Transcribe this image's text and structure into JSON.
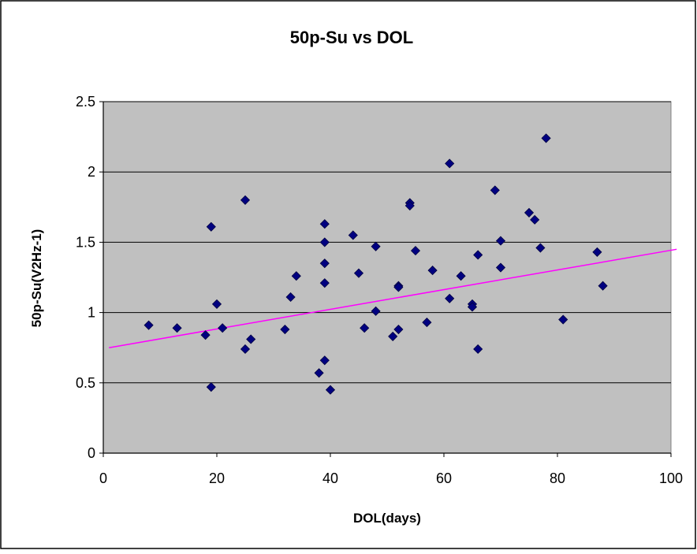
{
  "chart_data": {
    "type": "scatter",
    "title": "50p-Su vs DOL",
    "xlabel": "DOL(days)",
    "ylabel": "50p-Su(V2Hz-1)",
    "xlim": [
      0,
      100
    ],
    "ylim": [
      0,
      2.5
    ],
    "x_ticks": [
      "0",
      "20",
      "40",
      "60",
      "80",
      "100"
    ],
    "y_ticks": [
      "0",
      "0.5",
      "1",
      "1.5",
      "2",
      "2.5"
    ],
    "grid": "horizontal",
    "legend": "none",
    "series": [
      {
        "marker": "diamond",
        "points": [
          {
            "x": 8,
            "y": 0.91
          },
          {
            "x": 13,
            "y": 0.89
          },
          {
            "x": 18,
            "y": 0.84
          },
          {
            "x": 19,
            "y": 1.61
          },
          {
            "x": 19,
            "y": 0.47
          },
          {
            "x": 20,
            "y": 1.06
          },
          {
            "x": 21,
            "y": 0.89
          },
          {
            "x": 25,
            "y": 1.8
          },
          {
            "x": 25,
            "y": 0.74
          },
          {
            "x": 26,
            "y": 0.81
          },
          {
            "x": 32,
            "y": 0.88
          },
          {
            "x": 33,
            "y": 1.11
          },
          {
            "x": 34,
            "y": 1.26
          },
          {
            "x": 38,
            "y": 0.57
          },
          {
            "x": 39,
            "y": 1.63
          },
          {
            "x": 39,
            "y": 1.5
          },
          {
            "x": 39,
            "y": 1.35
          },
          {
            "x": 39,
            "y": 1.21
          },
          {
            "x": 39,
            "y": 0.66
          },
          {
            "x": 40,
            "y": 0.45
          },
          {
            "x": 44,
            "y": 1.55
          },
          {
            "x": 45,
            "y": 1.28
          },
          {
            "x": 46,
            "y": 0.89
          },
          {
            "x": 48,
            "y": 1.47
          },
          {
            "x": 48,
            "y": 1.01
          },
          {
            "x": 51,
            "y": 0.83
          },
          {
            "x": 52,
            "y": 1.19
          },
          {
            "x": 52,
            "y": 1.18
          },
          {
            "x": 52,
            "y": 0.88
          },
          {
            "x": 54,
            "y": 1.78
          },
          {
            "x": 54,
            "y": 1.76
          },
          {
            "x": 55,
            "y": 1.44
          },
          {
            "x": 57,
            "y": 0.93
          },
          {
            "x": 58,
            "y": 1.3
          },
          {
            "x": 61,
            "y": 2.06
          },
          {
            "x": 61,
            "y": 1.1
          },
          {
            "x": 63,
            "y": 1.26
          },
          {
            "x": 65,
            "y": 1.06
          },
          {
            "x": 65,
            "y": 1.04
          },
          {
            "x": 66,
            "y": 1.41
          },
          {
            "x": 66,
            "y": 0.74
          },
          {
            "x": 69,
            "y": 1.87
          },
          {
            "x": 70,
            "y": 1.51
          },
          {
            "x": 70,
            "y": 1.32
          },
          {
            "x": 75,
            "y": 1.71
          },
          {
            "x": 76,
            "y": 1.66
          },
          {
            "x": 77,
            "y": 1.46
          },
          {
            "x": 78,
            "y": 2.24
          },
          {
            "x": 81,
            "y": 0.95
          },
          {
            "x": 87,
            "y": 1.43
          },
          {
            "x": 88,
            "y": 1.19
          }
        ]
      }
    ],
    "trendline": {
      "type": "linear",
      "x": [
        1,
        101
      ],
      "y": [
        0.75,
        1.45
      ]
    },
    "colors": {
      "marker": "#000080",
      "trendline": "#FF00FF",
      "plot_background": "#C0C0C0",
      "gridline": "#000000"
    }
  }
}
